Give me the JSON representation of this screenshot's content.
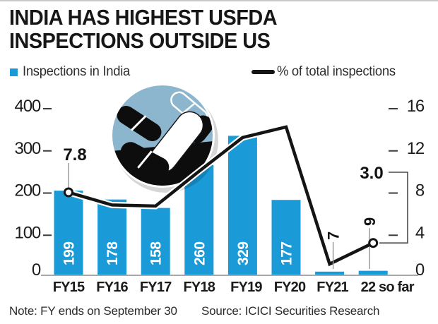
{
  "title": {
    "line1": "INDIA HAS HIGHEST USFDA",
    "line2": "INSPECTIONS OUTSIDE US"
  },
  "legend": {
    "bars": "Inspections in India",
    "line": "% of total inspections"
  },
  "note": "Note: FY ends on September 30",
  "source": "Source: ICICI Securities Research",
  "colors": {
    "bar": "#1a9ad7",
    "line": "#141414",
    "marker_fill": "#ffffff",
    "circle_blue": "#8cb6cd",
    "illustration_dark": "#0d0d0d",
    "axis_text": "#1c1c1c",
    "baseline": "#a8a8a8",
    "leader": "#9b9b9b",
    "bar_label": "#ffffff",
    "small_label": "#111111"
  },
  "chart_data": {
    "type": "bar",
    "subtype": "bar+line combo",
    "categories": [
      "FY15",
      "FY16",
      "FY17",
      "FY18",
      "FY19",
      "FY20",
      "FY21",
      "22 so far"
    ],
    "series": [
      {
        "name": "Inspections in India",
        "type": "bar",
        "axis": "left",
        "values": [
          199,
          178,
          158,
          260,
          329,
          177,
          7,
          9
        ]
      },
      {
        "name": "% of total inspections",
        "type": "line",
        "axis": "right",
        "values": [
          7.8,
          6.6,
          6.5,
          9.8,
          13,
          14,
          1,
          3
        ]
      }
    ],
    "left_axis": {
      "ticks": [
        400,
        300,
        200,
        100,
        0
      ],
      "range": [
        0,
        400
      ]
    },
    "right_axis": {
      "ticks": [
        16,
        12,
        8,
        4,
        0
      ],
      "range": [
        0,
        16
      ]
    },
    "grid": false,
    "legend_position": "top",
    "line_point_labels": [
      {
        "index": 0,
        "text": "7.8"
      },
      {
        "index": 7,
        "text": "3.0"
      }
    ],
    "bar_inside_labels": [
      "199",
      "178",
      "158",
      "260",
      "329",
      "177"
    ],
    "small_bar_callouts": [
      {
        "index": 6,
        "text": "7"
      },
      {
        "index": 7,
        "text": "9"
      }
    ]
  }
}
